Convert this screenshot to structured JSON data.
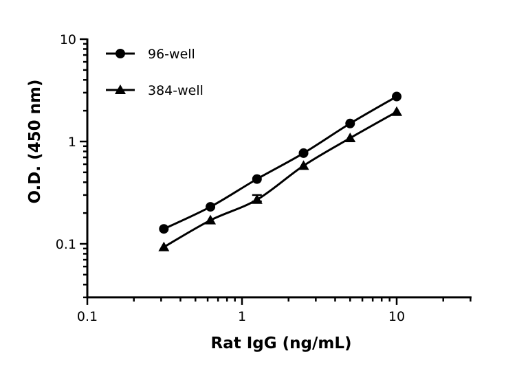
{
  "chart_data": {
    "type": "line",
    "xlabel": "Rat IgG (ng/mL)",
    "ylabel": "O.D. (450 nm)",
    "x_scale": "log",
    "y_scale": "log",
    "xlim": [
      0.1,
      30
    ],
    "ylim": [
      0.03,
      10
    ],
    "x_ticks": [
      {
        "v": 0.1,
        "label": "0.1"
      },
      {
        "v": 1,
        "label": "1"
      },
      {
        "v": 10,
        "label": "10"
      }
    ],
    "y_ticks": [
      {
        "v": 0.1,
        "label": "0.1"
      },
      {
        "v": 1,
        "label": "1"
      },
      {
        "v": 10,
        "label": "10"
      }
    ],
    "grid": false,
    "legend_position": "top-left",
    "x": [
      0.3125,
      0.625,
      1.25,
      2.5,
      5,
      10
    ],
    "series": [
      {
        "name": "96-well",
        "marker": "circle",
        "color": "#000000",
        "values": [
          0.14,
          0.23,
          0.43,
          0.77,
          1.5,
          2.75
        ]
      },
      {
        "name": "384-well",
        "marker": "triangle",
        "color": "#000000",
        "values": [
          0.093,
          0.17,
          0.27,
          0.58,
          1.08,
          1.95
        ],
        "error_bars": [
          null,
          null,
          [
            0.26,
            0.3
          ],
          null,
          null,
          null
        ]
      }
    ]
  }
}
